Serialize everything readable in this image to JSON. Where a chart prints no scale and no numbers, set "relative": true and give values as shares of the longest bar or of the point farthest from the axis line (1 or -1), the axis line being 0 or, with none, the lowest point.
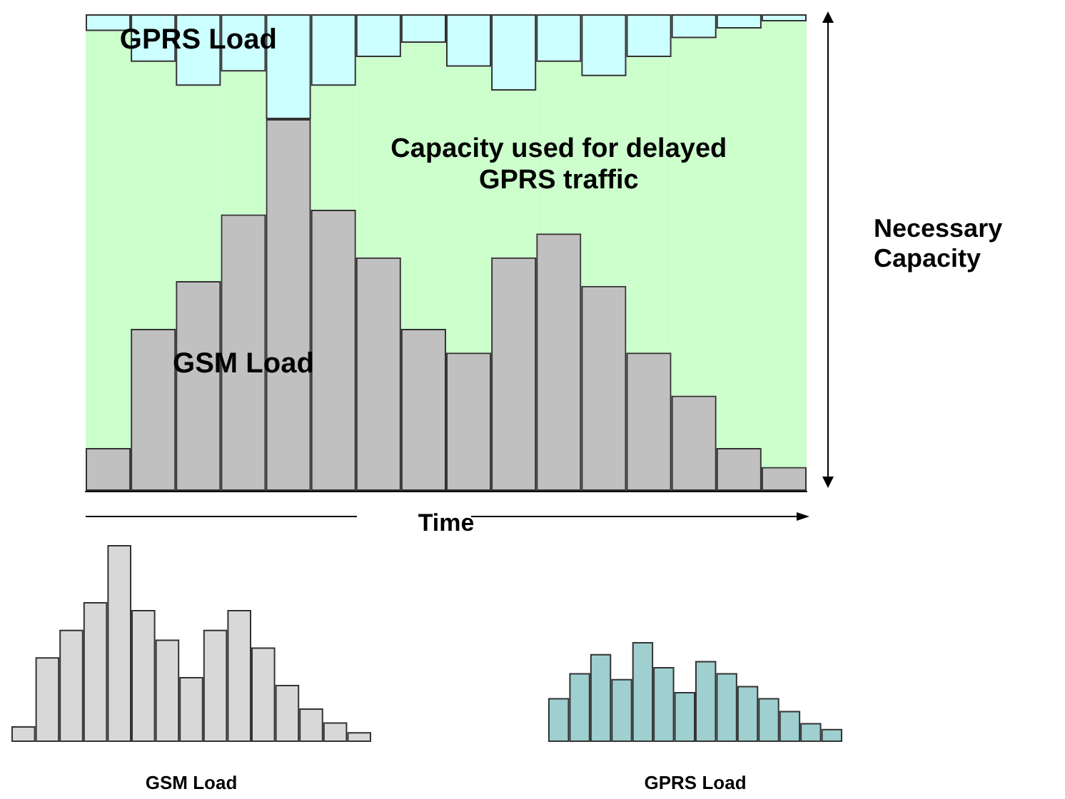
{
  "chart_data": [
    {
      "type": "bar",
      "relative": true,
      "stacked": true,
      "legend": false,
      "xlabel": "Time",
      "categories": [
        null,
        null,
        null,
        null,
        null,
        null,
        null,
        null,
        null,
        null,
        null,
        null,
        null,
        null,
        null,
        null
      ],
      "series": [
        {
          "name": "GSM Load",
          "color": "#c0c0c0",
          "values": [
            0.09,
            0.34,
            0.44,
            0.58,
            0.78,
            0.59,
            0.49,
            0.34,
            0.29,
            0.49,
            0.54,
            0.43,
            0.29,
            0.2,
            0.09,
            0.05
          ]
        },
        {
          "name": "Capacity used for delayed GPRS traffic",
          "color": "#ccffcc",
          "values": [
            0.875,
            0.56,
            0.41,
            0.3,
            0,
            0.26,
            0.42,
            0.6,
            0.6,
            0.35,
            0.36,
            0.44,
            0.62,
            0.75,
            0.88,
            0.935
          ]
        },
        {
          "name": "GPRS Load",
          "color": "#ccffff",
          "values": [
            0.035,
            0.1,
            0.15,
            0.12,
            0.22,
            0.15,
            0.09,
            0.06,
            0.11,
            0.16,
            0.1,
            0.13,
            0.09,
            0.05,
            0.03,
            0.015
          ]
        }
      ],
      "annotations": [
        "Necessary Capacity"
      ]
    },
    {
      "type": "bar",
      "relative": true,
      "legend": false,
      "xlabel": "GSM Load",
      "categories": [
        null,
        null,
        null,
        null,
        null,
        null,
        null,
        null,
        null,
        null,
        null,
        null,
        null,
        null,
        null
      ],
      "series": [
        {
          "color": "#d8d8d8",
          "values": [
            0.08,
            0.43,
            0.57,
            0.71,
            1,
            0.67,
            0.52,
            0.33,
            0.57,
            0.67,
            0.48,
            0.29,
            0.17,
            0.1,
            0.05
          ]
        }
      ]
    },
    {
      "type": "bar",
      "relative": true,
      "legend": false,
      "xlabel": "GPRS Load",
      "categories": [
        null,
        null,
        null,
        null,
        null,
        null,
        null,
        null,
        null,
        null,
        null,
        null,
        null,
        null
      ],
      "series": [
        {
          "color": "#9fcfcf",
          "values": [
            0.44,
            0.69,
            0.88,
            0.63,
            1,
            0.75,
            0.5,
            0.81,
            0.69,
            0.56,
            0.44,
            0.31,
            0.19,
            0.13
          ]
        }
      ]
    }
  ]
}
